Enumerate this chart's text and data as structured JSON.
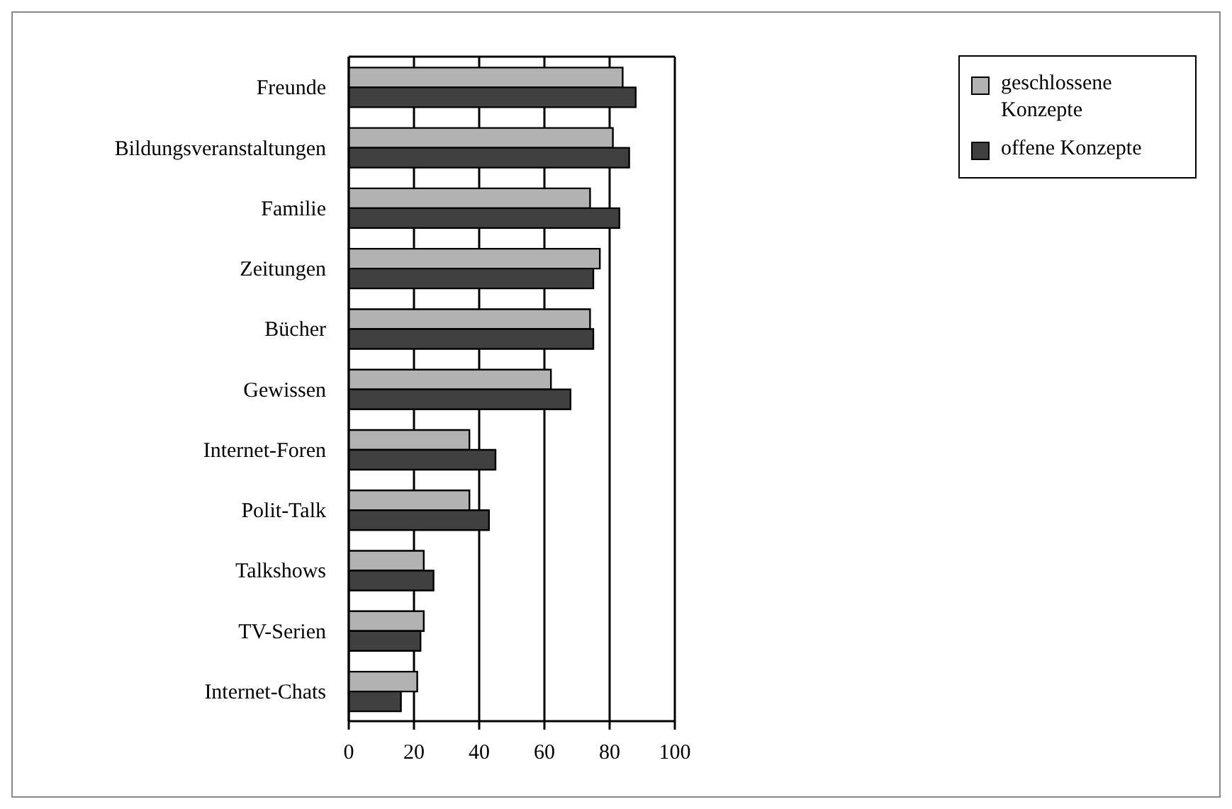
{
  "chart_data": {
    "type": "bar",
    "orientation": "horizontal",
    "categories": [
      "Freunde",
      "Bildungsveranstaltungen",
      "Familie",
      "Zeitungen",
      "Bücher",
      "Gewissen",
      "Internet-Foren",
      "Polit-Talk",
      "Talkshows",
      "TV-Serien",
      "Internet-Chats"
    ],
    "series": [
      {
        "name": "geschlossene Konzepte",
        "color": "#b2b2b2",
        "values": [
          84,
          81,
          74,
          77,
          74,
          62,
          37,
          37,
          23,
          23,
          21
        ]
      },
      {
        "name": "offene Konzepte",
        "color": "#404040",
        "values": [
          88,
          86,
          83,
          75,
          75,
          68,
          45,
          43,
          26,
          22,
          16
        ]
      }
    ],
    "xlim": [
      0,
      100
    ],
    "xticks": [
      0,
      20,
      40,
      60,
      80,
      100
    ],
    "grid": "x",
    "legend": "right"
  }
}
